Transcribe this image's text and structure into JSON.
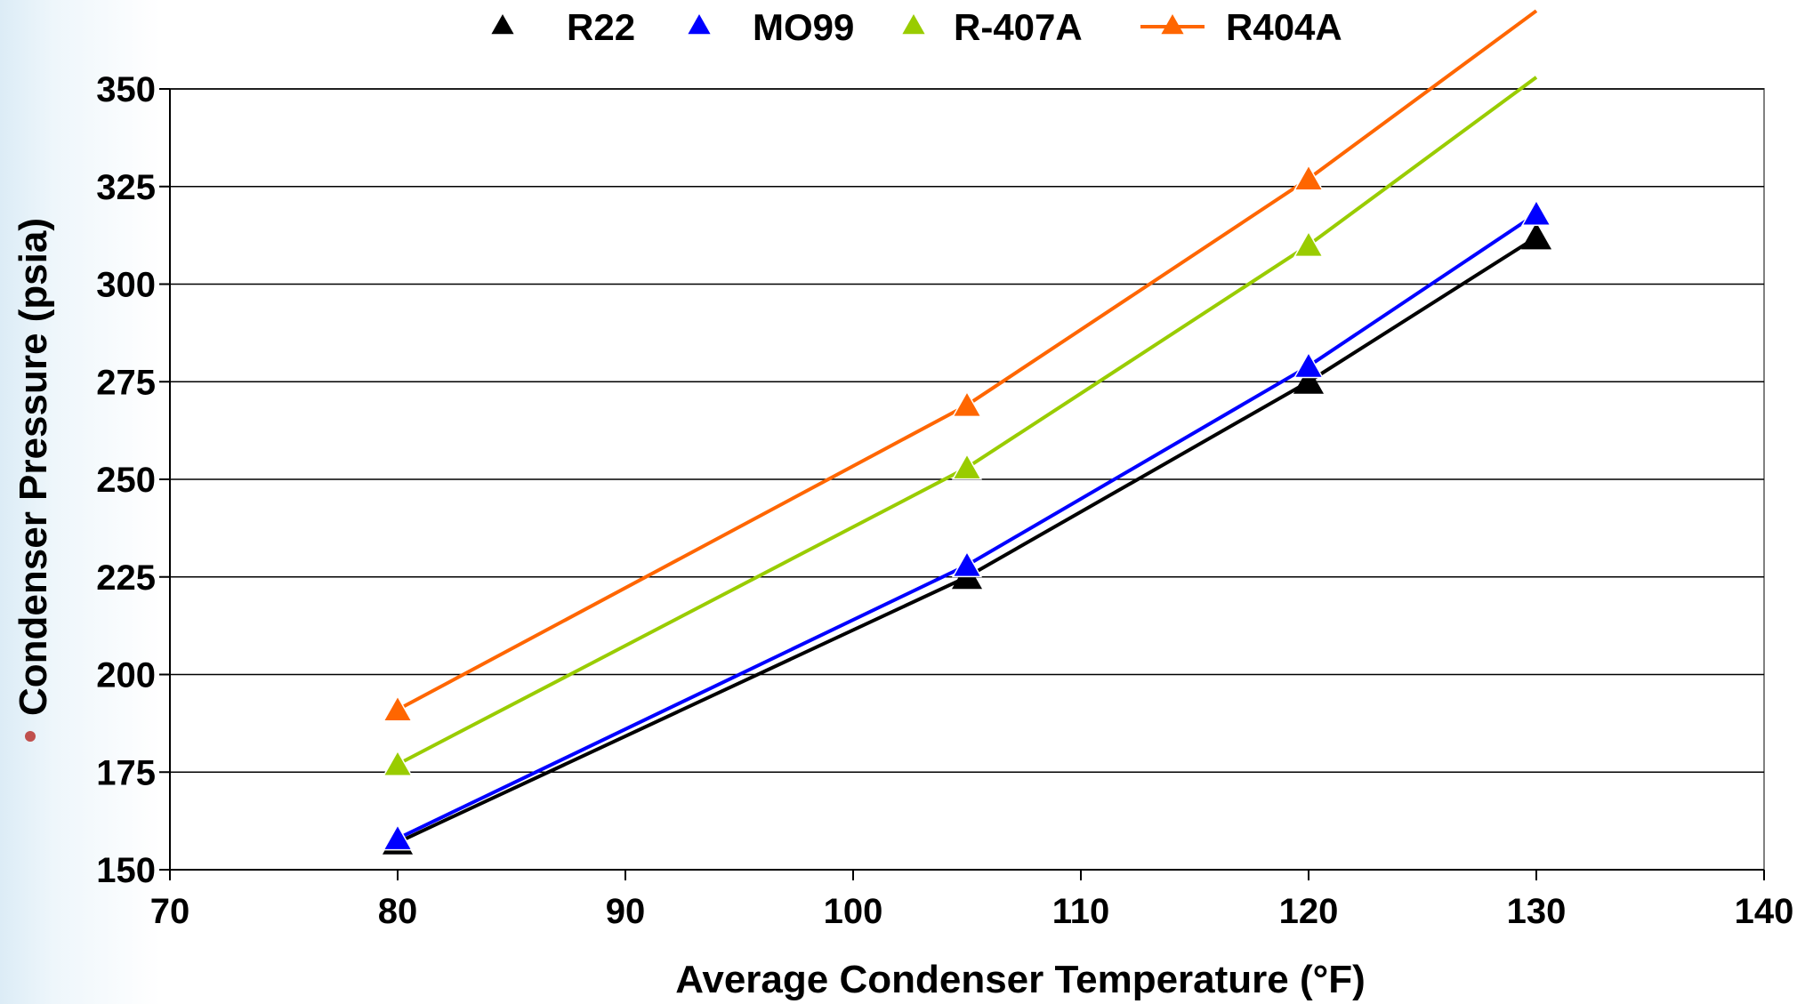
{
  "chart_data": {
    "type": "line",
    "title": "",
    "xlabel": "Average Condenser Temperature (°F)",
    "ylabel": "Condenser Pressure (psia)",
    "xlim": [
      70,
      140
    ],
    "ylim": [
      150,
      350
    ],
    "xticks": [
      70,
      80,
      90,
      100,
      110,
      120,
      130,
      140
    ],
    "yticks": [
      150,
      175,
      200,
      225,
      250,
      275,
      300,
      325,
      350
    ],
    "grid": "horizontal",
    "legend_position": "top",
    "series": [
      {
        "name": "R22",
        "color": "#000000",
        "marker": "triangle",
        "x": [
          80,
          105,
          120,
          130
        ],
        "y": [
          157,
          225,
          275,
          312
        ]
      },
      {
        "name": "MO99",
        "color": "#0000ff",
        "marker": "triangle",
        "x": [
          80,
          105,
          120,
          130
        ],
        "y": [
          158,
          228,
          279,
          318
        ]
      },
      {
        "name": "R-407A",
        "color": "#99cc00",
        "marker": "triangle",
        "x": [
          80,
          105,
          120,
          130
        ],
        "y": [
          177,
          253,
          310,
          353
        ]
      },
      {
        "name": "R404A",
        "color": "#ff6600",
        "marker": "triangle",
        "x": [
          80,
          105,
          120,
          130
        ],
        "y": [
          191,
          269,
          327,
          370
        ]
      }
    ]
  }
}
